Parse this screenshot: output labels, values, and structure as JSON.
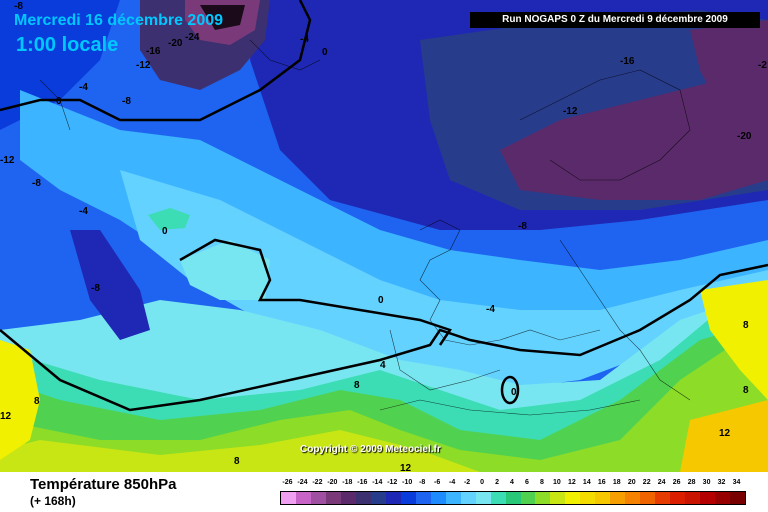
{
  "header": {
    "date": "Mercredi 16 décembre 2009",
    "time": "1:00 locale",
    "run": "Run NOGAPS 0 Z du Mercredi 9 décembre 2009"
  },
  "footer": {
    "parameter": "Température 850hPa",
    "lead": "(+ 168h)",
    "copyright": "Copyright © 2009 Meteociel.fr"
  },
  "legend": {
    "values": [
      "-26",
      "-24",
      "-22",
      "-20",
      "-18",
      "-16",
      "-14",
      "-12",
      "-10",
      "-8",
      "-6",
      "-4",
      "-2",
      "0",
      "2",
      "4",
      "6",
      "8",
      "10",
      "12",
      "14",
      "16",
      "18",
      "20",
      "22",
      "24",
      "26",
      "28",
      "30",
      "32",
      "34"
    ],
    "colors": [
      "#f0a0f0",
      "#c864c8",
      "#a050a0",
      "#7a3a7a",
      "#5a2a6a",
      "#3c3070",
      "#283c8c",
      "#1e28b4",
      "#0a3cdc",
      "#1e64f0",
      "#1e8cff",
      "#3cb4ff",
      "#64d2ff",
      "#78e6f0",
      "#3cdcb4",
      "#28c878",
      "#50d250",
      "#8cdc28",
      "#c8e614",
      "#f0f000",
      "#f5dc00",
      "#f5c800",
      "#f5a000",
      "#f58200",
      "#f06400",
      "#e63c00",
      "#dc1e00",
      "#c81400",
      "#b40000",
      "#960000",
      "#780000"
    ]
  },
  "map": {
    "labels": [
      {
        "id": "lbl-m8-nw",
        "text": "-8"
      },
      {
        "id": "lbl-m16-gr",
        "text": "-16"
      },
      {
        "id": "lbl-m20-gr",
        "text": "-20"
      },
      {
        "id": "lbl-m24-gr",
        "text": "-24"
      },
      {
        "id": "lbl-m12-gr",
        "text": "-12"
      },
      {
        "id": "lbl-m4-gr",
        "text": "-4"
      },
      {
        "id": "lbl-0-gr",
        "text": "0"
      },
      {
        "id": "lbl-m8-gr2",
        "text": "-8"
      },
      {
        "id": "lbl-0-ice",
        "text": "0"
      },
      {
        "id": "lbl-m4-lab",
        "text": "-4"
      },
      {
        "id": "lbl-m12-w",
        "text": "-12"
      },
      {
        "id": "lbl-m8-w",
        "text": "-8"
      },
      {
        "id": "lbl-m4-w",
        "text": "-4"
      },
      {
        "id": "lbl-0-atl",
        "text": "0"
      },
      {
        "id": "lbl-m8-atl",
        "text": "-8"
      },
      {
        "id": "lbl-m16-ne",
        "text": "-16"
      },
      {
        "id": "lbl-m12-scand",
        "text": "-12"
      },
      {
        "id": "lbl-m20-russ",
        "text": "-20"
      },
      {
        "id": "lbl-m2-edge",
        "text": "-2"
      },
      {
        "id": "lbl-m8-eur",
        "text": "-8"
      },
      {
        "id": "lbl-m4-fr",
        "text": "-4"
      },
      {
        "id": "lbl-0-bisc",
        "text": "0"
      },
      {
        "id": "lbl-4-iber",
        "text": "4"
      },
      {
        "id": "lbl-8-iber",
        "text": "8"
      },
      {
        "id": "lbl-0-alg",
        "text": "0"
      },
      {
        "id": "lbl-8-e",
        "text": "8"
      },
      {
        "id": "lbl-8-e2",
        "text": "8"
      },
      {
        "id": "lbl-12-e",
        "text": "12"
      },
      {
        "id": "lbl-12-w",
        "text": "12"
      },
      {
        "id": "lbl-8-w",
        "text": "8"
      },
      {
        "id": "lbl-8-s",
        "text": "8"
      },
      {
        "id": "lbl-12-s",
        "text": "12"
      }
    ]
  }
}
